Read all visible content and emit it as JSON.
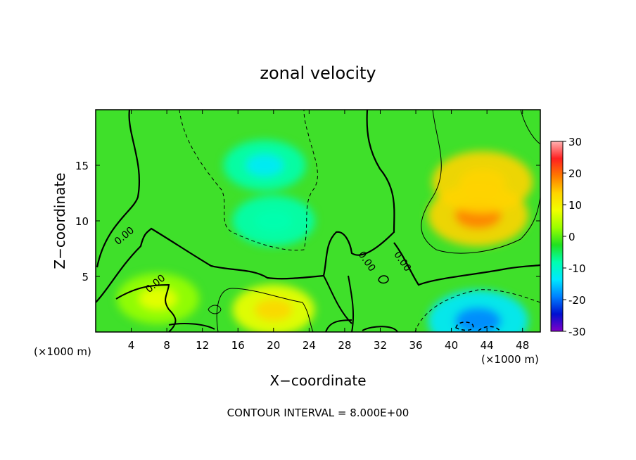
{
  "chart_data": {
    "type": "heatmap",
    "title": "zonal velocity",
    "xlabel": "X−coordinate",
    "ylabel": "Z−coordinate",
    "x_unit_left": "(×1000 m)",
    "x_unit_right": "(×1000 m)",
    "xlim": [
      0,
      50
    ],
    "ylim": [
      0,
      20
    ],
    "xticks": [
      4,
      8,
      12,
      16,
      20,
      24,
      28,
      32,
      36,
      40,
      44,
      48
    ],
    "yticks": [
      5,
      10,
      15
    ],
    "colorbar": {
      "ticks": [
        30,
        20,
        10,
        0,
        -10,
        -20,
        -30
      ],
      "range": [
        -30,
        30
      ],
      "colors": [
        "#ffb2b2",
        "#ff2020",
        "#ff7a00",
        "#ffd400",
        "#f0ff00",
        "#9aff00",
        "#20e020",
        "#00ffb0",
        "#00e8ff",
        "#0080ff",
        "#0010d0",
        "#8000c8"
      ]
    },
    "contour_interval_label": "CONTOUR INTERVAL = 8.000E+00",
    "contour_labels": [
      {
        "text": "0.00",
        "x": 2.5,
        "z": 7.8
      },
      {
        "text": "0.00",
        "x": 6.0,
        "z": 3.5
      },
      {
        "text": "0.00",
        "x": 29.5,
        "z": 7.0
      },
      {
        "text": "0.00",
        "x": 33.5,
        "z": 7.0
      }
    ],
    "features": [
      {
        "kind": "min",
        "x": 19.0,
        "z": 15.0,
        "value": -10
      },
      {
        "kind": "min",
        "x": 20.0,
        "z": 10.0,
        "value": -7
      },
      {
        "kind": "max",
        "x": 43.0,
        "z": 10.5,
        "value": 14
      },
      {
        "kind": "max",
        "x": 43.5,
        "z": 13.5,
        "value": 13
      },
      {
        "kind": "max",
        "x": 20.0,
        "z": 2.0,
        "value": 9
      },
      {
        "kind": "max",
        "x": 7.0,
        "z": 3.0,
        "value": 5
      },
      {
        "kind": "min",
        "x": 43.0,
        "z": 1.0,
        "value": -16
      }
    ]
  }
}
